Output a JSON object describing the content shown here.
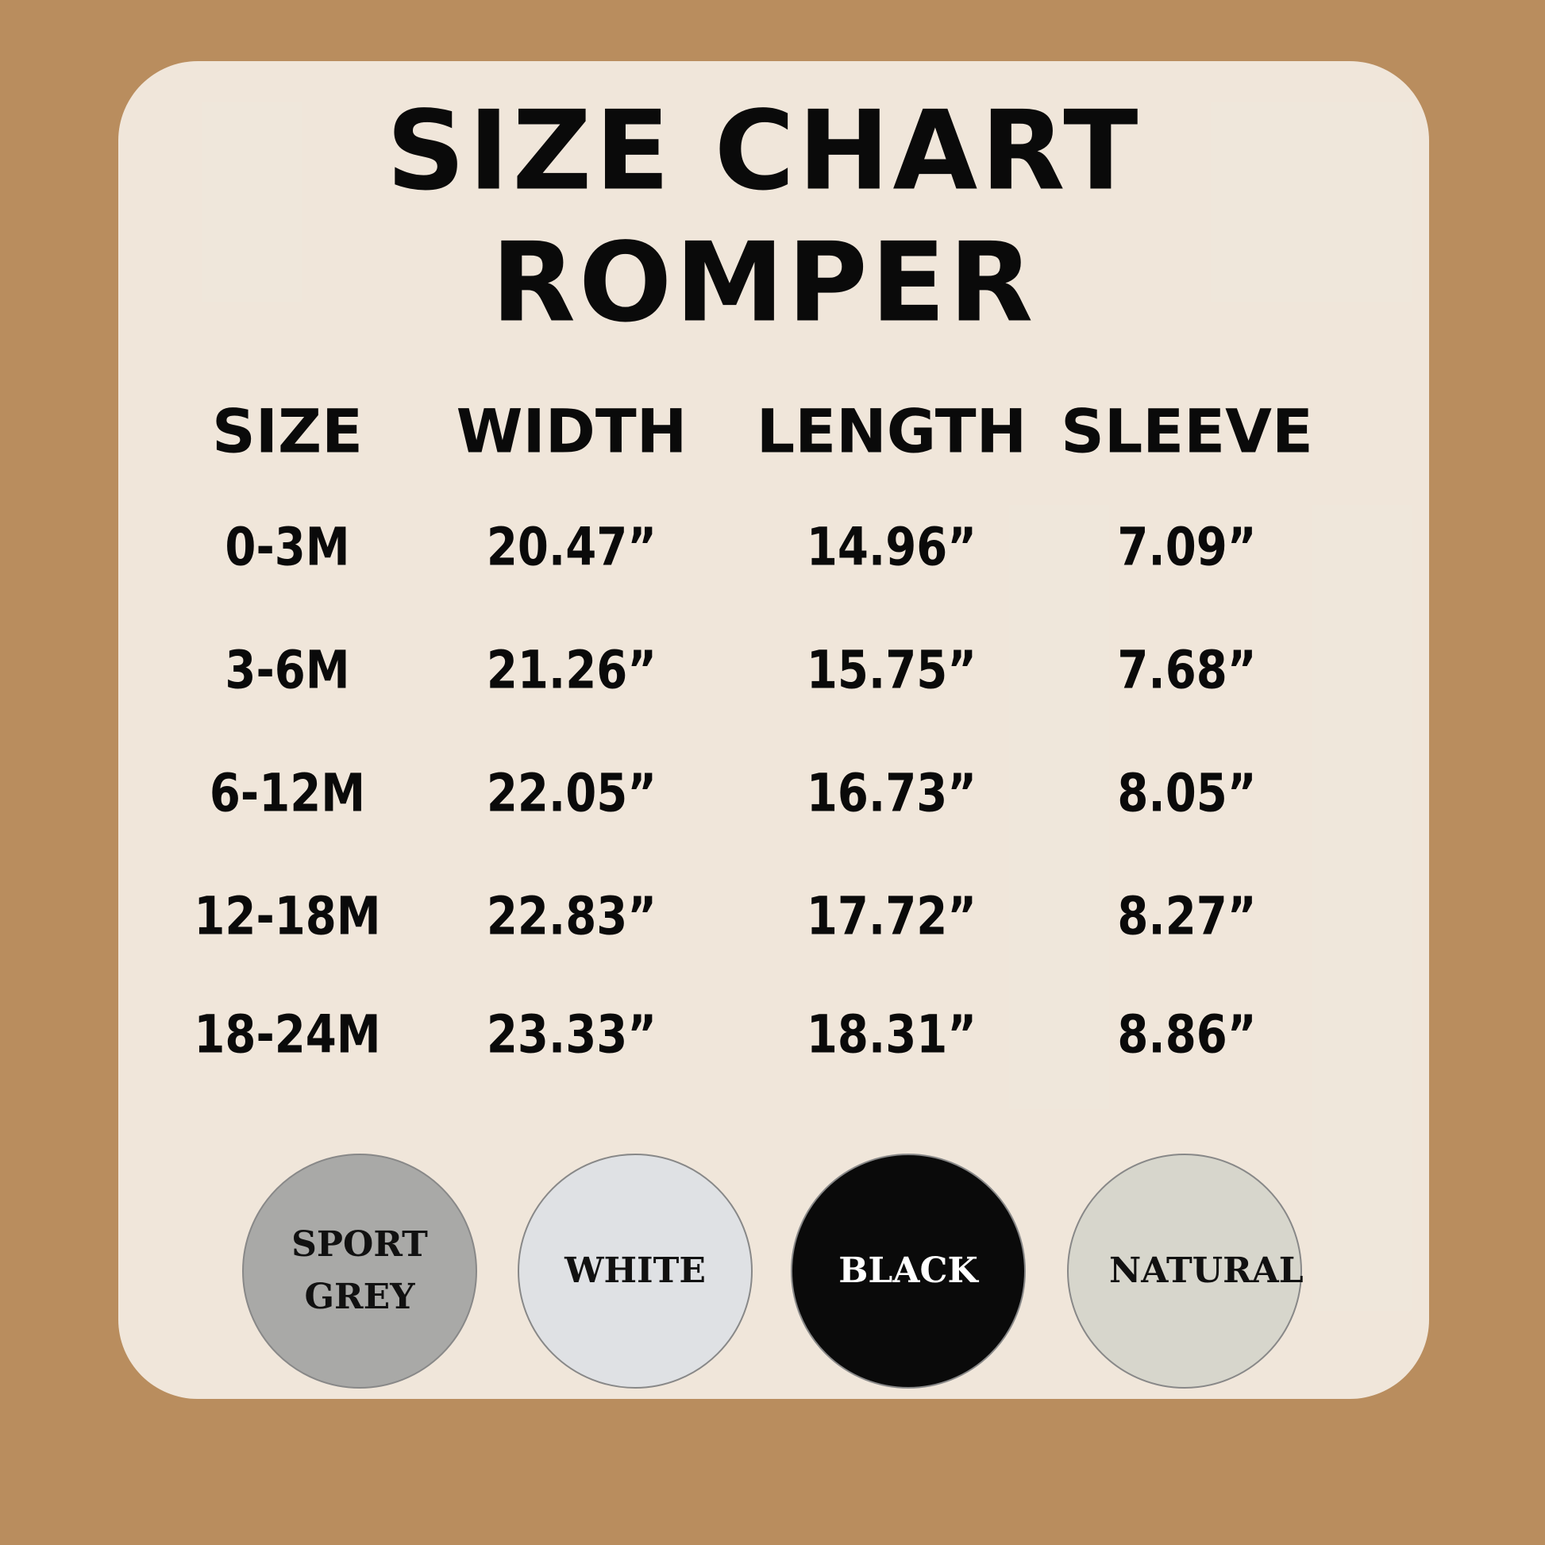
{
  "header": {
    "title": "SIZE CHART",
    "subtitle": "ROMPER"
  },
  "table": {
    "columns": [
      "SIZE",
      "WIDTH",
      "LENGTH",
      "SLEEVE"
    ],
    "rows": [
      [
        "0-3M",
        "20.47”",
        "14.96”",
        "7.09”"
      ],
      [
        "3-6M",
        "21.26”",
        "15.75”",
        "7.68”"
      ],
      [
        "6-12M",
        "22.05”",
        "16.73”",
        "8.05”"
      ],
      [
        "12-18M",
        "22.83”",
        "17.72”",
        "8.27”"
      ],
      [
        "18-24M",
        "23.33”",
        "18.31”",
        "8.86”"
      ]
    ]
  },
  "swatches": [
    {
      "name": "SPORT GREY",
      "color": "#a9a9a7",
      "text_color": "#111111"
    },
    {
      "name": "WHITE",
      "color": "#dfe1e4",
      "text_color": "#111111"
    },
    {
      "name": "BLACK",
      "color": "#0a0a0a",
      "text_color": "#ffffff"
    },
    {
      "name": "NATURAL",
      "color": "#d7d6cc",
      "text_color": "#111111"
    }
  ]
}
